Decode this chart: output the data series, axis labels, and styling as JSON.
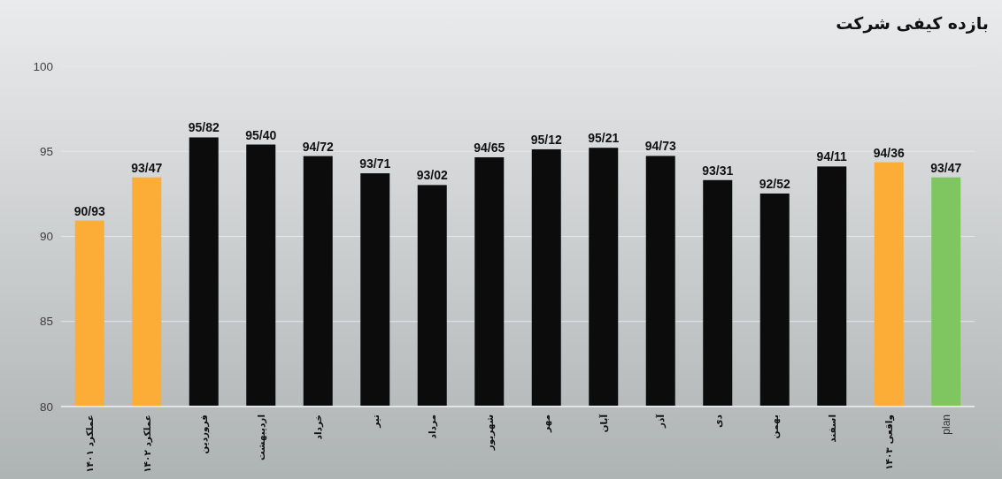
{
  "chart_data": {
    "type": "bar",
    "title": "بازده کیفی شرکت",
    "categories": [
      "عملکرد ۱۴۰۱",
      "عملکرد ۱۴۰۲",
      "فروردین",
      "اردیبهشت",
      "خرداد",
      "تیر",
      "مرداد",
      "شهریور",
      "مهر",
      "آبان",
      "آذر",
      "دی",
      "بهمن",
      "اسفند",
      "واقعی ۱۴۰۳",
      "plan"
    ],
    "values": [
      90.93,
      93.47,
      95.82,
      95.4,
      94.72,
      93.71,
      93.02,
      94.65,
      95.12,
      95.21,
      94.73,
      93.31,
      92.52,
      94.11,
      94.36,
      93.47
    ],
    "value_labels": [
      "90/93",
      "93/47",
      "95/82",
      "95/40",
      "94/72",
      "93/71",
      "93/02",
      "94/65",
      "95/12",
      "95/21",
      "94/73",
      "93/31",
      "92/52",
      "94/11",
      "94/36",
      "93/47"
    ],
    "colors": [
      "#fbad38",
      "#fbad38",
      "#0c0c0c",
      "#0c0c0c",
      "#0c0c0c",
      "#0c0c0c",
      "#0c0c0c",
      "#0c0c0c",
      "#0c0c0c",
      "#0c0c0c",
      "#0c0c0c",
      "#0c0c0c",
      "#0c0c0c",
      "#0c0c0c",
      "#fbad38",
      "#80c660"
    ],
    "ylim": [
      80,
      100
    ],
    "yticks": [
      80,
      85,
      90,
      95,
      100
    ],
    "grid": "y"
  }
}
